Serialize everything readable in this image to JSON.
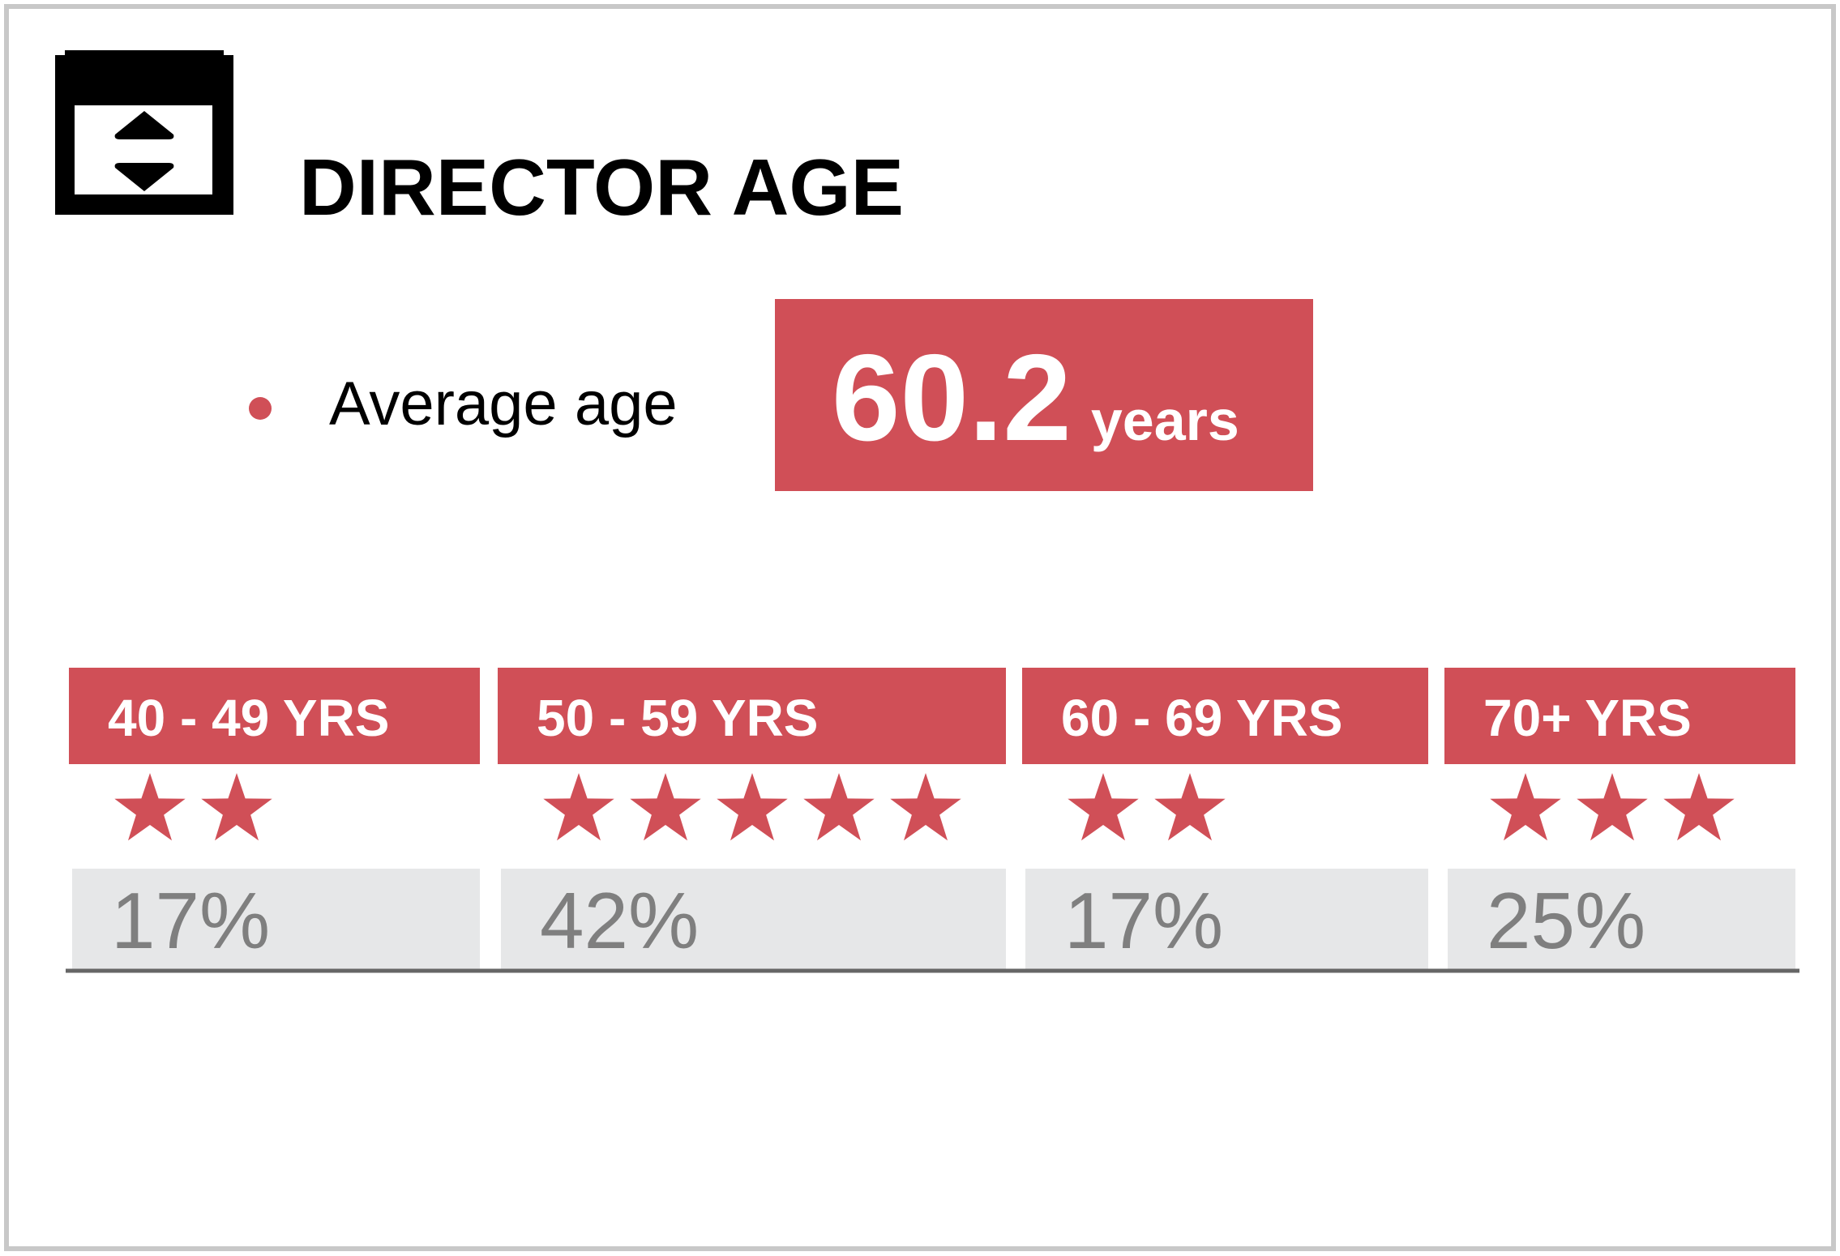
{
  "header": {
    "title": "DIRECTOR AGE"
  },
  "average": {
    "label": "Average age",
    "value": "60.2",
    "unit": "years"
  },
  "groups": [
    {
      "label": "40 - 49 YRS",
      "stars": 2,
      "share": "17%"
    },
    {
      "label": "50 - 59 YRS",
      "stars": 5,
      "share": "42%"
    },
    {
      "label": "60 - 69 YRS",
      "stars": 2,
      "share": "17%"
    },
    {
      "label": "70+ YRS",
      "stars": 3,
      "share": "25%"
    }
  ]
}
